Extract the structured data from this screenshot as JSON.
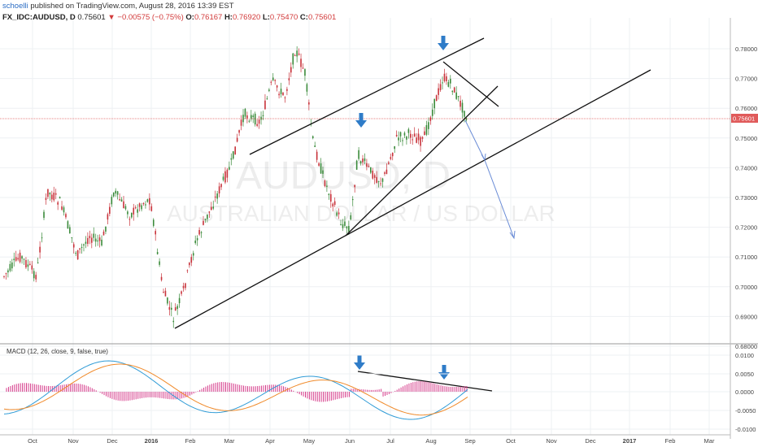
{
  "header": {
    "author": "schoelli",
    "published_text": "published on TradingView.com, August 28, 2016 13:39 EST",
    "symbol": "FX_IDC:AUDUSD, D",
    "last": "0.75601",
    "change": "▼ −0.00575 (−0.75%)",
    "open_label": "O:",
    "open": "0.76167",
    "high_label": "H:",
    "high": "0.76920",
    "low_label": "L:",
    "low": "0.75470",
    "close_label": "C:",
    "close": "0.75601"
  },
  "watermark": {
    "symbol": "AUDUSD, D",
    "name": "AUSTRALIAN DOLLAR / US DOLLAR"
  },
  "colors": {
    "bull": "#3a8a3a",
    "bear": "#c8323a",
    "macd_line": "#2f9bd6",
    "signal_line": "#f08a2a",
    "histogram": "#d63b8a",
    "arrow": "#2f7cc8",
    "projection": "#6a8cd6",
    "price_line": "#e05a5a"
  },
  "price_axis_labels": [
    "0.78000",
    "0.77000",
    "0.76000",
    "0.75000",
    "0.74000",
    "0.73000",
    "0.72000",
    "0.71000",
    "0.70000",
    "0.69000",
    "0.68000"
  ],
  "current_price_tag": "0.75601",
  "macd": {
    "label": "MACD (12, 26, close, 9, false, true)",
    "axis_labels": [
      "0.0100",
      "0.0050",
      "0.0000",
      "-0.0050",
      "-0.0100"
    ]
  },
  "time_axis_labels": [
    "Oct",
    "Nov",
    "Dec",
    "2016",
    "Feb",
    "Mar",
    "Apr",
    "May",
    "Jun",
    "Jul",
    "Aug",
    "Sep",
    "Oct",
    "Nov",
    "Dec",
    "2017",
    "Feb",
    "Mar"
  ]
}
